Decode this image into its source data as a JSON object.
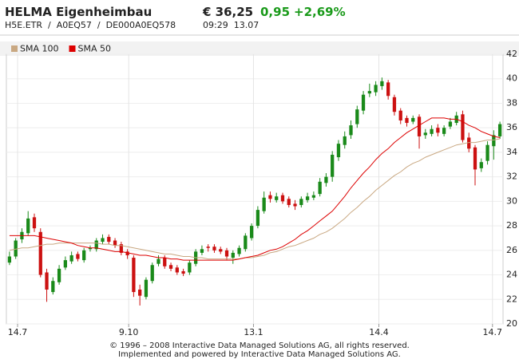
{
  "header": {
    "title": "HELMA Eigenheimbau",
    "price": "€ 36,25",
    "change": "0,95",
    "change_pct": "+2,69%",
    "symbols": [
      "H5E.ETR",
      "A0EQ57",
      "DE000A0EQ578"
    ],
    "separator": "/",
    "time": "09:29",
    "date": "13.07"
  },
  "chart_data": {
    "type": "candlestick",
    "up_color": "#1a8a1a",
    "down_color": "#cc1111",
    "grid": true,
    "xlim": [
      0,
      80
    ],
    "xticks": [
      {
        "value": 1.8,
        "label": "14.7"
      },
      {
        "value": 19.7,
        "label": "9.10"
      },
      {
        "value": 39.8,
        "label": "13.1"
      },
      {
        "value": 60,
        "label": "14.4"
      },
      {
        "value": 78.3,
        "label": "14.7"
      }
    ],
    "ylim": [
      20,
      42
    ],
    "yticks": [
      20,
      22,
      24,
      26,
      28,
      30,
      32,
      34,
      36,
      38,
      40,
      42
    ],
    "ohlc": {
      "open": [
        25.0,
        25.5,
        26.9,
        27.4,
        28.7,
        27.5,
        24.2,
        22.6,
        23.4,
        24.6,
        25.1,
        25.7,
        25.2,
        26.1,
        26.1,
        26.7,
        27.1,
        26.8,
        26.5,
        25.9,
        25.4,
        22.8,
        22.2,
        23.5,
        24.9,
        25.4,
        24.8,
        24.6,
        24.3,
        24.2,
        24.9,
        25.8,
        26.3,
        26.3,
        26.1,
        26.0,
        25.4,
        25.7,
        26.1,
        27.0,
        28.0,
        29.2,
        30.5,
        30.1,
        30.5,
        30.2,
        29.8,
        29.7,
        30.1,
        30.3,
        30.6,
        31.5,
        32.0,
        33.6,
        34.6,
        35.4,
        36.3,
        37.4,
        38.8,
        38.9,
        39.4,
        39.7,
        38.5,
        37.4,
        36.8,
        36.5,
        36.9,
        35.4,
        35.5,
        36.0,
        35.5,
        36.1,
        36.4,
        37.1,
        35.2,
        34.4,
        32.7,
        33.3,
        34.5,
        35.3
      ],
      "high": [
        25.9,
        27.0,
        27.8,
        29.2,
        29.0,
        27.8,
        24.5,
        23.8,
        24.8,
        25.5,
        25.9,
        25.9,
        26.2,
        26.4,
        27.0,
        27.3,
        27.3,
        27.0,
        26.7,
        26.1,
        25.6,
        23.2,
        23.8,
        25.0,
        25.6,
        25.6,
        25.0,
        24.8,
        24.5,
        25.2,
        26.1,
        26.4,
        26.5,
        26.5,
        26.3,
        26.2,
        26.0,
        26.4,
        27.4,
        28.2,
        29.6,
        30.8,
        30.8,
        30.7,
        30.7,
        30.4,
        30.1,
        30.4,
        30.7,
        30.8,
        31.9,
        32.3,
        34.1,
        35.0,
        35.7,
        36.6,
        37.8,
        39.0,
        39.6,
        39.8,
        40.1,
        39.9,
        38.7,
        37.6,
        37.0,
        37.0,
        37.1,
        35.9,
        36.2,
        36.3,
        36.2,
        36.8,
        37.3,
        37.4,
        35.6,
        34.6,
        33.5,
        34.9,
        35.8,
        36.5
      ],
      "low": [
        24.8,
        25.3,
        26.6,
        27.2,
        27.5,
        23.8,
        21.8,
        22.4,
        23.2,
        24.4,
        24.9,
        25.1,
        25.0,
        25.9,
        25.9,
        26.5,
        26.5,
        26.2,
        25.6,
        25.3,
        22.2,
        21.5,
        22.0,
        23.3,
        24.7,
        24.5,
        24.3,
        24.0,
        23.9,
        24.0,
        24.7,
        25.6,
        25.9,
        25.8,
        25.7,
        25.2,
        24.9,
        25.5,
        25.9,
        26.8,
        27.8,
        29.0,
        29.9,
        29.9,
        29.8,
        29.5,
        29.3,
        29.5,
        29.9,
        30.1,
        30.4,
        31.2,
        31.6,
        33.3,
        34.3,
        35.1,
        36.0,
        37.1,
        38.5,
        38.6,
        39.1,
        38.3,
        37.0,
        36.3,
        36.1,
        36.3,
        34.3,
        35.1,
        35.3,
        35.3,
        35.3,
        35.9,
        36.2,
        34.8,
        34.0,
        31.3,
        32.4,
        33.0,
        33.4,
        35.1
      ],
      "close": [
        25.5,
        26.8,
        27.5,
        28.6,
        27.8,
        24.0,
        22.8,
        23.5,
        24.5,
        25.2,
        25.6,
        25.3,
        26.0,
        26.2,
        26.8,
        27.0,
        26.7,
        26.4,
        25.8,
        25.6,
        22.6,
        22.3,
        23.6,
        24.8,
        25.3,
        24.7,
        24.5,
        24.2,
        24.1,
        25.0,
        25.9,
        26.1,
        26.2,
        26.0,
        25.9,
        25.5,
        25.8,
        26.2,
        27.2,
        28.0,
        29.3,
        30.3,
        30.2,
        30.4,
        30.0,
        29.7,
        29.6,
        30.2,
        30.4,
        30.5,
        31.6,
        32.0,
        33.8,
        34.7,
        35.3,
        36.2,
        37.5,
        38.7,
        39.0,
        39.5,
        39.8,
        38.6,
        37.3,
        36.6,
        36.4,
        36.8,
        35.3,
        35.6,
        35.9,
        35.6,
        36.0,
        36.5,
        37.0,
        35.0,
        34.3,
        32.6,
        33.2,
        34.6,
        35.4,
        36.3
      ]
    },
    "series": [
      {
        "name": "SMA 100",
        "color": "#c9a882",
        "values": [
          26.0,
          26.1,
          26.2,
          26.2,
          26.3,
          26.4,
          26.5,
          26.5,
          26.6,
          26.6,
          26.6,
          26.6,
          26.6,
          26.6,
          26.6,
          26.5,
          26.5,
          26.4,
          26.4,
          26.3,
          26.2,
          26.1,
          26.0,
          25.9,
          25.8,
          25.7,
          25.7,
          25.6,
          25.5,
          25.5,
          25.4,
          25.4,
          25.3,
          25.3,
          25.3,
          25.3,
          25.3,
          25.3,
          25.4,
          25.4,
          25.5,
          25.6,
          25.8,
          25.9,
          26.1,
          26.3,
          26.4,
          26.6,
          26.8,
          27.0,
          27.3,
          27.5,
          27.8,
          28.2,
          28.6,
          29.1,
          29.5,
          30.0,
          30.4,
          30.9,
          31.3,
          31.7,
          32.1,
          32.4,
          32.8,
          33.1,
          33.3,
          33.6,
          33.8,
          34.0,
          34.2,
          34.4,
          34.6,
          34.7,
          34.8,
          34.8,
          34.9,
          35.0,
          35.0,
          35.1
        ]
      },
      {
        "name": "SMA 50",
        "color": "#dd0000",
        "values": [
          27.2,
          27.2,
          27.2,
          27.2,
          27.2,
          27.1,
          27.0,
          26.9,
          26.8,
          26.7,
          26.6,
          26.4,
          26.3,
          26.2,
          26.2,
          26.1,
          26.0,
          25.9,
          25.9,
          25.8,
          25.7,
          25.6,
          25.6,
          25.5,
          25.4,
          25.4,
          25.3,
          25.3,
          25.2,
          25.2,
          25.2,
          25.2,
          25.2,
          25.2,
          25.2,
          25.2,
          25.2,
          25.3,
          25.4,
          25.5,
          25.6,
          25.8,
          26.0,
          26.1,
          26.3,
          26.6,
          26.9,
          27.3,
          27.6,
          28.0,
          28.4,
          28.8,
          29.2,
          29.8,
          30.4,
          31.1,
          31.7,
          32.3,
          32.8,
          33.4,
          33.9,
          34.3,
          34.8,
          35.2,
          35.6,
          35.9,
          36.2,
          36.5,
          36.8,
          36.8,
          36.8,
          36.7,
          36.7,
          36.5,
          36.2,
          36.0,
          35.7,
          35.5,
          35.3,
          35.2
        ]
      }
    ]
  },
  "footer": [
    "© 1996 – 2008 Interactive Data Managed Solutions AG, all rights reserved.",
    "Implemented and powered by Interactive Data Managed Solutions AG."
  ]
}
